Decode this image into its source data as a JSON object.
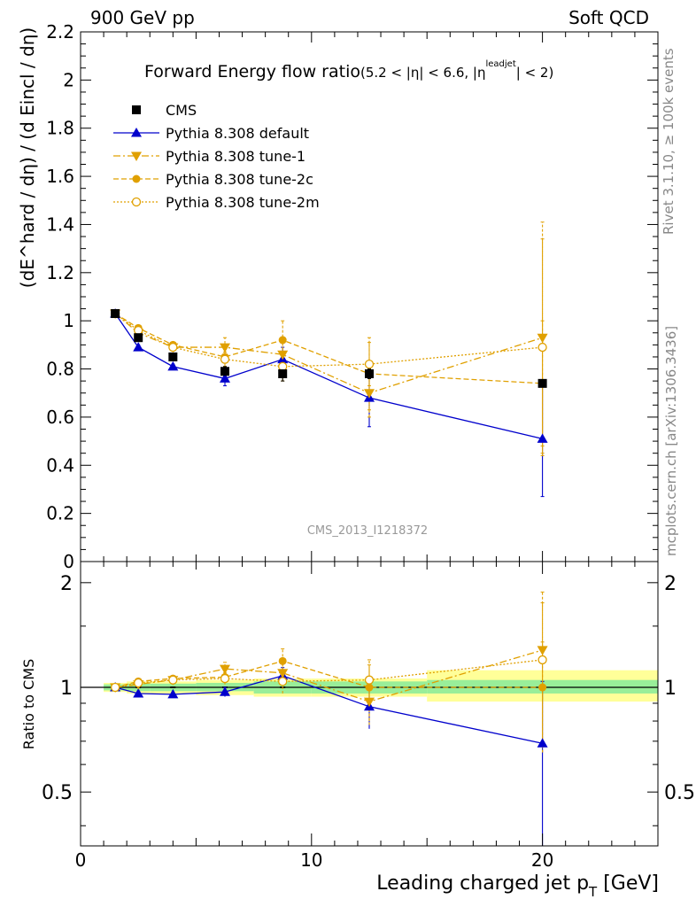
{
  "header": {
    "left": "900 GeV pp",
    "right": "Soft QCD"
  },
  "side": {
    "rivet": "Rivet 3.1.10, ≥ 100k events",
    "mcplots": "mcplots.cern.ch [arXiv:1306.3436]"
  },
  "chart_data": [
    {
      "type": "scatter",
      "title_main": "Forward Energy flow ratio",
      "title_sub_pre": "(5.2 < |η| < 6.6, |η",
      "title_sub_sup": "leadjet",
      "title_sub_post": "| < 2)",
      "ylabel": "(dE^hard / dη) / (d Eincl / dη)",
      "ylim": [
        0,
        2.2
      ],
      "xlim": [
        0,
        25
      ],
      "yticks": [
        0,
        0.2,
        0.4,
        0.6,
        0.8,
        1,
        1.2,
        1.4,
        1.6,
        1.8,
        2,
        2.2
      ],
      "yticklabels": [
        "0",
        "0.2",
        "0.4",
        "0.6",
        "0.8",
        "1",
        "1.2",
        "1.4",
        "1.6",
        "1.8",
        "2",
        "2.2"
      ],
      "watermark": "CMS_2013_I1218372",
      "legend_position": "top-left",
      "series": [
        {
          "name": "CMS",
          "color": "#000000",
          "marker": "square",
          "line": "none",
          "x": [
            1.5,
            2.5,
            4,
            6.25,
            8.75,
            12.5,
            20
          ],
          "y": [
            1.03,
            0.93,
            0.85,
            0.79,
            0.78,
            0.78,
            0.74
          ],
          "err": [
            0.01,
            0.01,
            0.01,
            0.02,
            0.03,
            0.02,
            0.01
          ]
        },
        {
          "name": "Pythia 8.308 default",
          "color": "#0000cc",
          "marker": "triangle-up",
          "line": "solid",
          "x": [
            1.5,
            2.5,
            4,
            6.25,
            8.75,
            12.5,
            20
          ],
          "y": [
            1.03,
            0.89,
            0.81,
            0.76,
            0.84,
            0.68,
            0.51
          ],
          "err": [
            0.01,
            0.01,
            0.01,
            0.03,
            0.05,
            0.12,
            0.24
          ]
        },
        {
          "name": "Pythia 8.308 tune-1",
          "color": "#e0a000",
          "marker": "triangle-down",
          "line": "dashdot",
          "x": [
            1.5,
            2.5,
            4,
            6.25,
            8.75,
            12.5,
            20
          ],
          "y": [
            1.03,
            0.95,
            0.89,
            0.89,
            0.86,
            0.7,
            0.93
          ],
          "err": [
            0.01,
            0.01,
            0.01,
            0.04,
            0.07,
            0.1,
            0.48
          ]
        },
        {
          "name": "Pythia 8.308 tune-2c",
          "color": "#e0a000",
          "marker": "circle",
          "line": "dashed",
          "x": [
            1.5,
            2.5,
            4,
            6.25,
            8.75,
            12.5,
            20
          ],
          "y": [
            1.03,
            0.97,
            0.9,
            0.85,
            0.92,
            0.78,
            0.74
          ],
          "err": [
            0.01,
            0.01,
            0.01,
            0.04,
            0.08,
            0.15,
            0.26
          ]
        },
        {
          "name": "Pythia 8.308 tune-2m",
          "color": "#e0a000",
          "marker": "circle-open",
          "line": "dotted",
          "x": [
            1.5,
            2.5,
            4,
            6.25,
            8.75,
            12.5,
            20
          ],
          "y": [
            1.03,
            0.96,
            0.89,
            0.84,
            0.81,
            0.82,
            0.89
          ],
          "err": [
            0.01,
            0.01,
            0.01,
            0.03,
            0.06,
            0.09,
            0.45
          ]
        }
      ]
    },
    {
      "type": "scatter",
      "ylabel": "Ratio to CMS",
      "xlabel": "Leading charged jet p",
      "xlabel_sub": "T",
      "xlabel_unit": " [GeV]",
      "xlim": [
        0,
        25
      ],
      "ylim": [
        0.35,
        2.3
      ],
      "xticks": [
        0,
        10,
        20
      ],
      "xticklabels": [
        "0",
        "10",
        "20"
      ],
      "yticks": [
        0.5,
        1,
        2
      ],
      "yticklabels": [
        "0.5",
        "1",
        "2"
      ],
      "bands": [
        {
          "x0": 1,
          "x1": 2,
          "lo2": 0.97,
          "hi2": 1.03,
          "lo1": 0.98,
          "hi1": 1.02
        },
        {
          "x0": 2,
          "x1": 3,
          "lo2": 0.96,
          "hi2": 1.04,
          "lo1": 0.975,
          "hi1": 1.025
        },
        {
          "x0": 3,
          "x1": 5,
          "lo2": 0.96,
          "hi2": 1.04,
          "lo1": 0.975,
          "hi1": 1.025
        },
        {
          "x0": 5,
          "x1": 7.5,
          "lo2": 0.95,
          "hi2": 1.05,
          "lo1": 0.975,
          "hi1": 1.03
        },
        {
          "x0": 7.5,
          "x1": 10,
          "lo2": 0.94,
          "hi2": 1.06,
          "lo1": 0.96,
          "hi1": 1.04
        },
        {
          "x0": 10,
          "x1": 15,
          "lo2": 0.94,
          "hi2": 1.06,
          "lo1": 0.96,
          "hi1": 1.04
        },
        {
          "x0": 15,
          "x1": 25,
          "lo2": 0.91,
          "hi2": 1.12,
          "lo1": 0.96,
          "hi1": 1.05
        }
      ],
      "series": [
        {
          "name": "Pythia 8.308 default",
          "x": [
            1.5,
            2.5,
            4,
            6.25,
            8.75,
            12.5,
            20
          ],
          "y": [
            1.0,
            0.96,
            0.955,
            0.97,
            1.08,
            0.88,
            0.69
          ],
          "err": [
            0.01,
            0.01,
            0.01,
            0.03,
            0.06,
            0.12,
            0.35
          ]
        },
        {
          "name": "Pythia 8.308 tune-1",
          "x": [
            1.5,
            2.5,
            4,
            6.25,
            8.75,
            12.5,
            20
          ],
          "y": [
            1.0,
            1.02,
            1.05,
            1.13,
            1.1,
            0.91,
            1.28
          ],
          "err": [
            0.01,
            0.01,
            0.01,
            0.05,
            0.08,
            0.13,
            0.6
          ]
        },
        {
          "name": "Pythia 8.308 tune-2c",
          "x": [
            1.5,
            2.5,
            4,
            6.25,
            8.75,
            12.5,
            20
          ],
          "y": [
            1.0,
            1.04,
            1.06,
            1.07,
            1.19,
            1.0,
            1.0
          ],
          "err": [
            0.01,
            0.01,
            0.01,
            0.05,
            0.1,
            0.2,
            0.35
          ]
        },
        {
          "name": "Pythia 8.308 tune-2m",
          "x": [
            1.5,
            2.5,
            4,
            6.25,
            8.75,
            12.5,
            20
          ],
          "y": [
            1.0,
            1.03,
            1.05,
            1.06,
            1.04,
            1.05,
            1.2
          ],
          "err": [
            0.01,
            0.01,
            0.01,
            0.04,
            0.08,
            0.11,
            0.55
          ]
        }
      ]
    }
  ]
}
